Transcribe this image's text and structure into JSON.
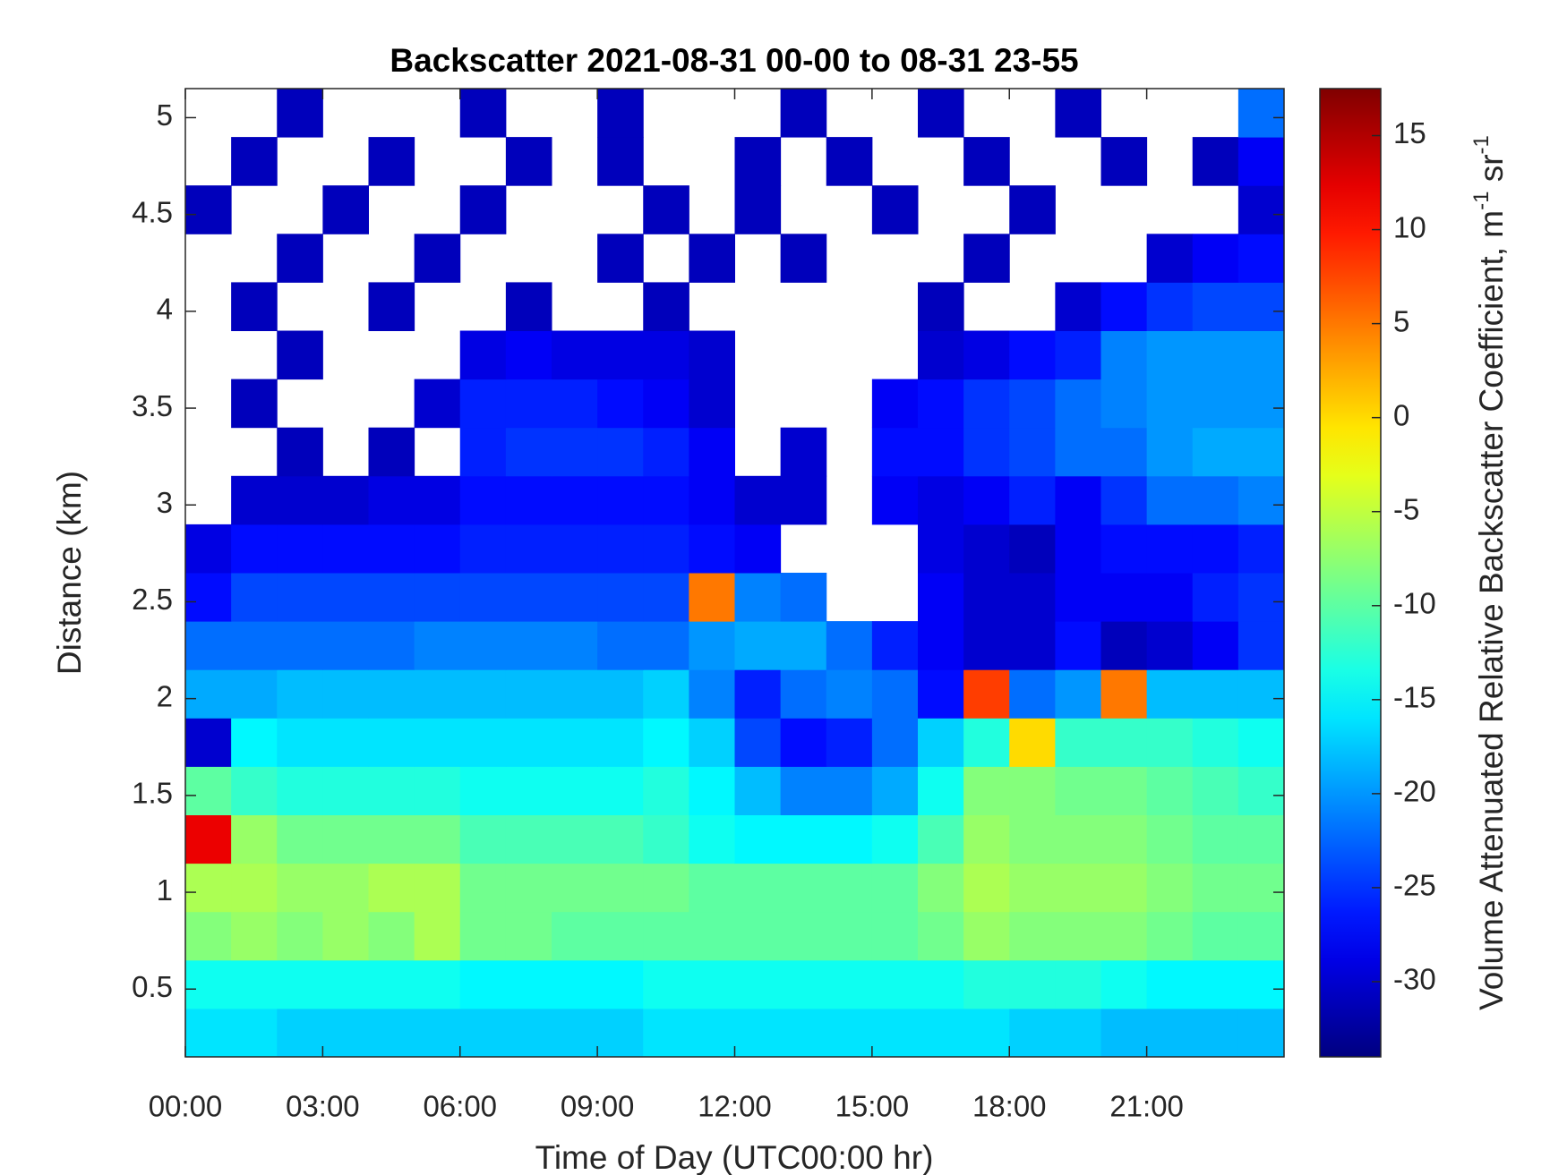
{
  "chart_data": {
    "type": "heatmap",
    "title": "Backscatter 2021-08-31 00-00 to 08-31 23-55",
    "x_label": "Time of Day (UTC00:00 hr)",
    "y_label": "Distance (km)",
    "colorbar_label": [
      "Volume Attenuated Relative Backscatter Coefficient, m",
      "-1",
      " sr",
      "-1"
    ],
    "colormap": "jet",
    "x": [
      0.5,
      1.5,
      2.5,
      3.5,
      4.5,
      5.5,
      6.5,
      7.5,
      8.5,
      9.5,
      10.5,
      11.5,
      12.5,
      13.5,
      14.5,
      15.5,
      16.5,
      17.5,
      18.5,
      19.5,
      20.5,
      21.5,
      22.5,
      23.5
    ],
    "y": [
      0.275,
      0.525,
      0.775,
      1.025,
      1.275,
      1.525,
      1.775,
      2.025,
      2.275,
      2.525,
      2.775,
      3.025,
      3.275,
      3.525,
      3.775,
      4.025,
      4.275,
      4.525,
      4.775,
      5.025
    ],
    "z": [
      [
        -16,
        -16,
        -17,
        -17,
        -17,
        -17,
        -17,
        -17,
        -17,
        -17,
        -16,
        -16,
        -16,
        -16,
        -16,
        -16,
        -16,
        -16,
        -17,
        -17,
        -18,
        -18,
        -18,
        -18
      ],
      [
        -14,
        -14,
        -14,
        -14,
        -14,
        -14,
        -15,
        -15,
        -15,
        -15,
        -14,
        -14,
        -14,
        -14,
        -14,
        -14,
        -14,
        -13,
        -13,
        -13,
        -14,
        -15,
        -15,
        -15
      ],
      [
        -8,
        -7,
        -8,
        -7,
        -8,
        -6,
        -9,
        -9,
        -10,
        -10,
        -10,
        -10,
        -10,
        -10,
        -10,
        -10,
        -9,
        -7,
        -8,
        -8,
        -8,
        -9,
        -10,
        -10
      ],
      [
        -6,
        -6,
        -7,
        -7,
        -6,
        -6,
        -9,
        -9,
        -9,
        -9,
        -9,
        -10,
        -10,
        -10,
        -10,
        -10,
        -8,
        -6,
        -7,
        -7,
        -7,
        -8,
        -9,
        -9
      ],
      [
        12,
        -7,
        -9,
        -9,
        -9,
        -9,
        -11,
        -11,
        -11,
        -11,
        -12,
        -14,
        -15,
        -15,
        -15,
        -14,
        -11,
        -7,
        -8,
        -8,
        -8,
        -9,
        -10,
        -10
      ],
      [
        -10,
        -12,
        -13,
        -13,
        -13,
        -13,
        -14,
        -14,
        -14,
        -14,
        -13,
        -15,
        -18,
        -21,
        -21,
        -19,
        -14,
        -8,
        -8,
        -9,
        -9,
        -10,
        -11,
        -12
      ],
      [
        -30,
        -15,
        -16,
        -16,
        -16,
        -16,
        -16,
        -16,
        -16,
        -16,
        -15,
        -17,
        -24,
        -27,
        -26,
        -22,
        -17,
        -13,
        0,
        -12,
        -12,
        -12,
        -13,
        -14
      ],
      [
        -19,
        -19,
        -18,
        -18,
        -18,
        -18,
        -18,
        -18,
        -18,
        -18,
        -17,
        -21,
        -26,
        -22,
        -21,
        -22,
        -27,
        8,
        -22,
        -20,
        5,
        -18,
        -18,
        -18
      ],
      [
        -22,
        -22,
        -22,
        -22,
        -22,
        -21,
        -21,
        -21,
        -21,
        -22,
        -22,
        -20,
        -19,
        -19,
        -22,
        -26,
        -28,
        -30,
        -30,
        -27,
        -31,
        -30,
        -28,
        -25
      ],
      [
        -27,
        -24,
        -24,
        -24,
        -24,
        -24,
        -24,
        -24,
        -24,
        -24,
        -24,
        5,
        -21,
        -22,
        null,
        null,
        -28,
        -30,
        -30,
        -28,
        -28,
        -28,
        -26,
        -25
      ],
      [
        -29,
        -27,
        -27,
        -27,
        -27,
        -27,
        -26,
        -26,
        -26,
        -26,
        -26,
        -27,
        -28,
        null,
        null,
        null,
        -29,
        -30,
        -31,
        -28,
        -27,
        -27,
        -27,
        -26
      ],
      [
        null,
        -30,
        -30,
        -30,
        -29,
        -29,
        -27,
        -27,
        -27,
        -27,
        -27,
        -28,
        -30,
        -30,
        null,
        -28,
        -29,
        -28,
        -26,
        -28,
        -25,
        -22,
        -22,
        -21
      ],
      [
        null,
        null,
        -31,
        null,
        -31,
        null,
        -26,
        -25,
        -25,
        -25,
        -26,
        -28,
        null,
        -30,
        null,
        -27,
        -27,
        -25,
        -24,
        -22,
        -22,
        -20,
        -19,
        -19
      ],
      [
        null,
        -31,
        null,
        null,
        null,
        -30,
        -26,
        -26,
        -26,
        -27,
        -28,
        -30,
        null,
        null,
        null,
        -28,
        -27,
        -25,
        -24,
        -22,
        -21,
        -20,
        -20,
        -20
      ],
      [
        null,
        null,
        -31,
        null,
        null,
        null,
        -29,
        -28,
        -29,
        -29,
        -29,
        -30,
        null,
        null,
        null,
        null,
        -30,
        -29,
        -27,
        -26,
        -21,
        -20,
        -20,
        -20
      ],
      [
        null,
        -31,
        null,
        null,
        -31,
        null,
        null,
        -31,
        null,
        null,
        -31,
        null,
        null,
        null,
        null,
        null,
        -31,
        null,
        null,
        -30,
        -27,
        -25,
        -24,
        -24
      ],
      [
        null,
        null,
        -31,
        null,
        null,
        -31,
        null,
        null,
        null,
        -31,
        null,
        -31,
        null,
        -31,
        null,
        null,
        null,
        -31,
        null,
        null,
        null,
        -30,
        -28,
        -27
      ],
      [
        -31,
        null,
        null,
        -31,
        null,
        null,
        -31,
        null,
        null,
        null,
        -31,
        null,
        -31,
        null,
        null,
        -31,
        null,
        null,
        -31,
        null,
        null,
        null,
        null,
        -30
      ],
      [
        null,
        -31,
        null,
        null,
        -31,
        null,
        null,
        -31,
        null,
        -31,
        null,
        null,
        -31,
        null,
        -31,
        null,
        null,
        -31,
        null,
        null,
        -31,
        null,
        -31,
        -28
      ],
      [
        null,
        null,
        -31,
        null,
        null,
        null,
        -31,
        null,
        null,
        -31,
        null,
        null,
        null,
        -31,
        null,
        null,
        -31,
        null,
        null,
        -31,
        null,
        null,
        null,
        -22
      ]
    ],
    "xlim": [
      0,
      24
    ],
    "xticks": [
      {
        "value": 0,
        "label": "00:00"
      },
      {
        "value": 3,
        "label": "03:00"
      },
      {
        "value": 6,
        "label": "06:00"
      },
      {
        "value": 9,
        "label": "09:00"
      },
      {
        "value": 12,
        "label": "12:00"
      },
      {
        "value": 15,
        "label": "15:00"
      },
      {
        "value": 18,
        "label": "18:00"
      },
      {
        "value": 21,
        "label": "21:00"
      }
    ],
    "ylim": [
      0.15,
      5.15
    ],
    "yticks": [
      0.5,
      1,
      1.5,
      2,
      2.5,
      3,
      3.5,
      4,
      4.5,
      5
    ],
    "clim": [
      -34,
      17.5
    ],
    "cticks": [
      -30,
      -25,
      -20,
      -15,
      -10,
      -5,
      0,
      5,
      10,
      15
    ]
  }
}
